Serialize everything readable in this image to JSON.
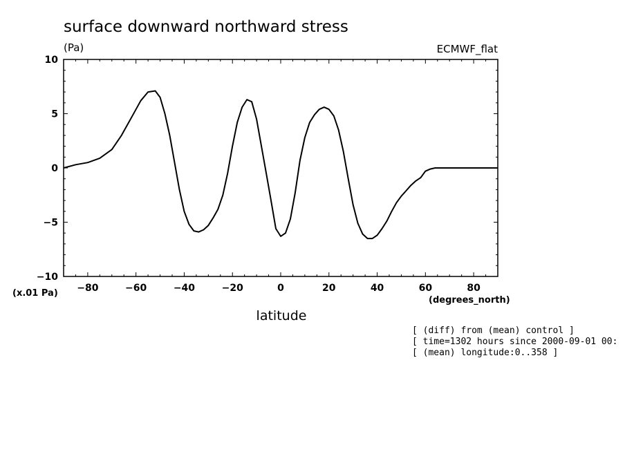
{
  "chart_data": {
    "type": "line",
    "title": "surface downward northward stress",
    "units": "(Pa)",
    "dataset_label": "ECMWF_flat",
    "scale_note": "(x.01 Pa)",
    "xlabel": "latitude",
    "x_units": "(degrees_north)",
    "xlim": [
      -90,
      90
    ],
    "ylim": [
      -10,
      10
    ],
    "x_ticks": [
      -80,
      -60,
      -40,
      -20,
      0,
      20,
      40,
      60,
      80
    ],
    "y_ticks": [
      -10,
      -5,
      0,
      5,
      10
    ],
    "grid": false,
    "series": [
      {
        "x": [
          -90,
          -85,
          -80,
          -75,
          -70,
          -66,
          -62,
          -58,
          -55,
          -52,
          -50,
          -48,
          -46,
          -44,
          -42,
          -40,
          -38,
          -36,
          -34,
          -32,
          -30,
          -28,
          -26,
          -24,
          -22,
          -20,
          -18,
          -16,
          -14,
          -12,
          -10,
          -8,
          -6,
          -4,
          -2,
          0,
          2,
          4,
          6,
          8,
          10,
          12,
          14,
          16,
          18,
          20,
          22,
          24,
          26,
          28,
          30,
          32,
          34,
          36,
          38,
          40,
          42,
          44,
          46,
          48,
          50,
          52,
          54,
          56,
          58,
          60,
          62,
          64,
          66,
          68,
          70,
          75,
          80,
          85,
          90
        ],
        "y": [
          0.0,
          0.3,
          0.5,
          0.9,
          1.7,
          3.0,
          4.6,
          6.2,
          7.0,
          7.1,
          6.5,
          5.0,
          3.0,
          0.5,
          -2.0,
          -4.0,
          -5.2,
          -5.8,
          -5.9,
          -5.7,
          -5.3,
          -4.6,
          -3.8,
          -2.5,
          -0.5,
          2.0,
          4.2,
          5.6,
          6.3,
          6.1,
          4.5,
          2.0,
          -0.5,
          -3.0,
          -5.6,
          -6.3,
          -6.0,
          -4.7,
          -2.3,
          0.7,
          2.8,
          4.2,
          4.9,
          5.4,
          5.6,
          5.4,
          4.8,
          3.5,
          1.5,
          -1.0,
          -3.4,
          -5.1,
          -6.1,
          -6.5,
          -6.5,
          -6.2,
          -5.6,
          -4.9,
          -4.0,
          -3.2,
          -2.6,
          -2.1,
          -1.6,
          -1.2,
          -0.9,
          -0.3,
          -0.1,
          0.0,
          0.0,
          0.0,
          0.0,
          0.0,
          0.0,
          0.0,
          0.0
        ]
      }
    ]
  },
  "annotations": [
    "[ (diff) from (mean) control ]",
    "[ time=1302 hours since 2000-09-01 00:",
    "[ (mean) longitude:0..358 ]"
  ],
  "colors": {
    "line": "#000000",
    "background": "#ffffff"
  }
}
